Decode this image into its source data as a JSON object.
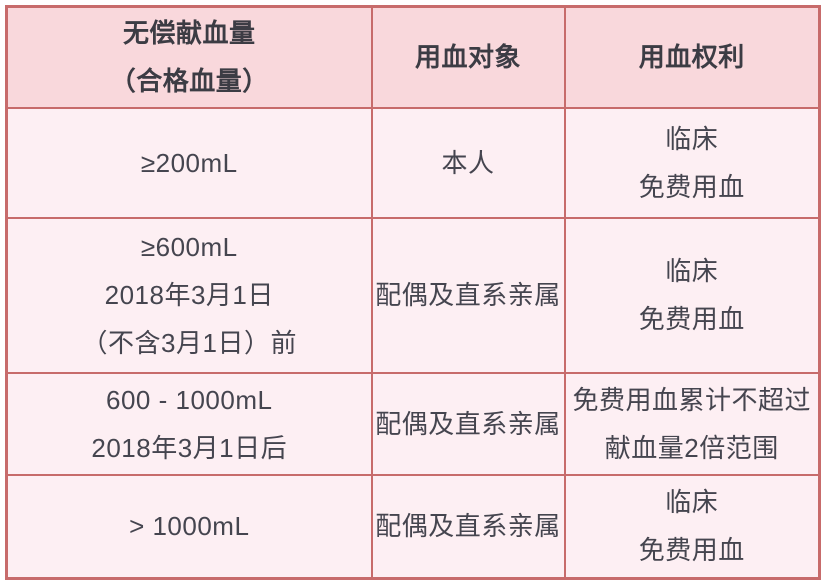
{
  "page": {
    "background": "#ffffff"
  },
  "colors": {
    "border": "#c76b6b",
    "header_bg": "#f9d8dc",
    "body_bg": "#fdeff3",
    "header_text": "#3c3c44",
    "body_text": "#45454f"
  },
  "table": {
    "header": [
      {
        "lines": [
          "无偿献血量",
          "（合格血量）"
        ]
      },
      {
        "lines": [
          "用血对象"
        ]
      },
      {
        "lines": [
          "用血权利"
        ]
      }
    ],
    "rows": [
      {
        "cells": [
          {
            "lines": [
              "≥200mL"
            ]
          },
          {
            "lines": [
              "本人"
            ]
          },
          {
            "lines": [
              "临床",
              "免费用血"
            ]
          }
        ]
      },
      {
        "cells": [
          {
            "lines": [
              "≥600mL",
              "2018年3月1日",
              "（不含3月1日）前"
            ]
          },
          {
            "lines": [
              "配偶及直系亲属"
            ]
          },
          {
            "lines": [
              "临床",
              "免费用血"
            ]
          }
        ]
      },
      {
        "cells": [
          {
            "lines": [
              "600 - 1000mL",
              "2018年3月1日后"
            ]
          },
          {
            "lines": [
              "配偶及直系亲属"
            ]
          },
          {
            "lines": [
              "免费用血累计不超过",
              "献血量2倍范围"
            ]
          }
        ]
      },
      {
        "cells": [
          {
            "lines": [
              "> 1000mL"
            ]
          },
          {
            "lines": [
              "配偶及直系亲属"
            ]
          },
          {
            "lines": [
              "临床",
              "免费用血"
            ]
          }
        ]
      }
    ]
  },
  "chart_data": {
    "type": "table",
    "title": "",
    "columns": [
      "无偿献血量（合格血量）",
      "用血对象",
      "用血权利"
    ],
    "rows": [
      [
        "≥200mL",
        "本人",
        "临床免费用血"
      ],
      [
        "≥600mL 2018年3月1日（不含3月1日）前",
        "配偶及直系亲属",
        "临床免费用血"
      ],
      [
        "600 - 1000mL 2018年3月1日后",
        "配偶及直系亲属",
        "免费用血累计不超过献血量2倍范围"
      ],
      [
        "> 1000mL",
        "配偶及直系亲属",
        "临床免费用血"
      ]
    ]
  }
}
